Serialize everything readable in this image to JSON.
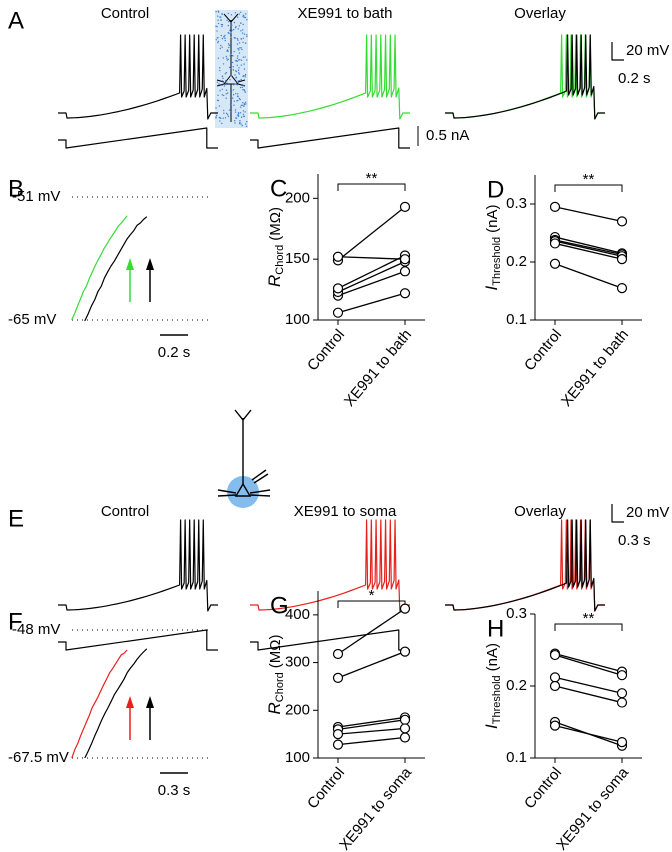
{
  "traces": [
    {
      "panel": "A",
      "titles": [
        "Control",
        "XE991 to bath",
        "Overlay"
      ],
      "colors": {
        "control": "#000000",
        "drug": "#33dd33"
      },
      "scale_bars": {
        "voltage": "20 mV",
        "time": "0.2 s",
        "current": "0.5 nA"
      }
    },
    {
      "panel": "B",
      "levels": [
        "-51 mV",
        "-65 mV"
      ],
      "time_bar": "0.2 s"
    },
    {
      "panel": "E",
      "titles": [
        "Control",
        "XE991 to soma",
        "Overlay"
      ],
      "colors": {
        "control": "#000000",
        "drug": "#e8201c"
      },
      "scale_bars": {
        "voltage": "20 mV",
        "time": "0.3 s"
      }
    },
    {
      "panel": "F",
      "levels": [
        "-48 mV",
        "-67.5 mV"
      ],
      "time_bar": "0.3 s"
    }
  ],
  "chart_data": [
    {
      "type": "paired",
      "panel": "C",
      "categories": [
        "Control",
        "XE991 to bath"
      ],
      "ylabel": {
        "symbol": "R",
        "subscript": "Chord",
        "unit": "(MΩ)"
      },
      "significance": "**",
      "color": "#000000",
      "ylim": [
        100,
        220
      ],
      "yticks": [
        100,
        150,
        200
      ],
      "series": [
        {
          "values": [
            106,
            122
          ]
        },
        {
          "values": [
            120,
            140
          ]
        },
        {
          "values": [
            123,
            148
          ]
        },
        {
          "values": [
            126,
            153
          ]
        },
        {
          "values": [
            149,
            193
          ]
        },
        {
          "values": [
            152,
            150
          ]
        }
      ]
    },
    {
      "type": "paired",
      "panel": "D",
      "categories": [
        "Control",
        "XE991 to bath"
      ],
      "ylabel": {
        "symbol": "I",
        "subscript": "Threshold",
        "unit": "(nA)"
      },
      "significance": "**",
      "color": "#000000",
      "ylim": [
        0.1,
        0.35
      ],
      "yticks": [
        0.1,
        0.2,
        0.3
      ],
      "series": [
        {
          "values": [
            0.295,
            0.27
          ]
        },
        {
          "values": [
            0.243,
            0.215
          ]
        },
        {
          "values": [
            0.238,
            0.213
          ]
        },
        {
          "values": [
            0.236,
            0.21
          ]
        },
        {
          "values": [
            0.232,
            0.205
          ]
        },
        {
          "values": [
            0.197,
            0.155
          ]
        }
      ]
    },
    {
      "type": "paired",
      "panel": "G",
      "categories": [
        "Control",
        "XE991 to soma"
      ],
      "ylabel": {
        "symbol": "R",
        "subscript": "Chord",
        "unit": "(MΩ)"
      },
      "significance": "*",
      "color": "#000000",
      "ylim": [
        100,
        450
      ],
      "yticks": [
        100,
        200,
        300,
        400
      ],
      "series": [
        {
          "values": [
            318,
            413
          ]
        },
        {
          "values": [
            268,
            323
          ]
        },
        {
          "values": [
            165,
            185
          ]
        },
        {
          "values": [
            160,
            180
          ]
        },
        {
          "values": [
            150,
            162
          ]
        },
        {
          "values": [
            128,
            143
          ]
        }
      ]
    },
    {
      "type": "paired",
      "panel": "H",
      "categories": [
        "Control",
        "XE991 to soma"
      ],
      "ylabel": {
        "symbol": "I",
        "subscript": "Threshold",
        "unit": "(nA)"
      },
      "significance": "**",
      "color": "#000000",
      "ylim": [
        0.1,
        0.3
      ],
      "yticks": [
        0.1,
        0.2,
        0.3
      ],
      "series": [
        {
          "values": [
            0.245,
            0.22
          ]
        },
        {
          "values": [
            0.243,
            0.215
          ]
        },
        {
          "values": [
            0.212,
            0.19
          ]
        },
        {
          "values": [
            0.2,
            0.177
          ]
        },
        {
          "values": [
            0.15,
            0.117
          ]
        },
        {
          "values": [
            0.145,
            0.122
          ]
        }
      ]
    }
  ]
}
